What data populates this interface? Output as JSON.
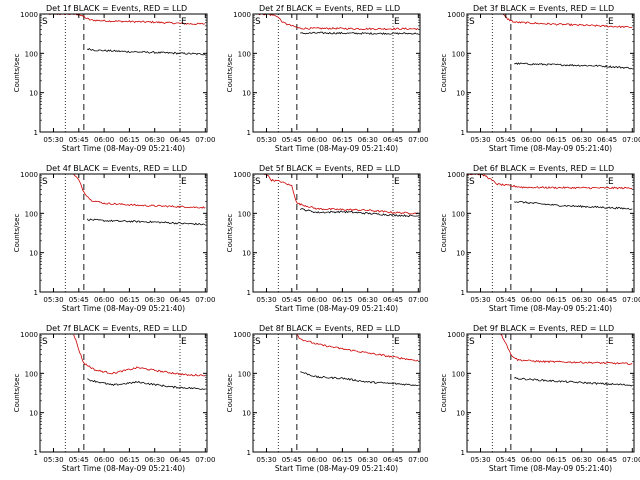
{
  "chart_data": [
    {
      "type": "line",
      "title": "Det 1f BLACK = Events, RED = LLD",
      "xlabel": "Start Time (08-May-09 05:21:40)",
      "ylabel": "Counts/sec",
      "x_ticks": [
        "05:30",
        "05:45",
        "06:00",
        "06:15",
        "06:30",
        "06:45",
        "07:00"
      ],
      "y_ticks": [
        "1",
        "10",
        "100",
        "1000"
      ],
      "y_scale": "log",
      "ylim": [
        1,
        1000
      ],
      "markers": [
        "S",
        "E"
      ],
      "series": [
        {
          "color": "#cc0000",
          "x": [
            "05:24",
            "05:38",
            "05:45",
            "05:49",
            "05:52",
            "06:05",
            "06:30",
            "06:52",
            "07:00"
          ],
          "values": [
            1000,
            1000,
            980,
            800,
            700,
            660,
            620,
            560,
            560
          ]
        },
        {
          "color": "#000000",
          "x": [
            "05:49",
            "05:50",
            "05:55",
            "06:15",
            "06:45",
            "07:00"
          ],
          "values": [
            null,
            130,
            120,
            110,
            100,
            95
          ]
        }
      ]
    },
    {
      "type": "line",
      "title": "Det 2f BLACK = Events, RED = LLD",
      "xlabel": "Start Time (08-May-09 05:21:40)",
      "ylabel": "Counts/sec",
      "x_ticks": [
        "05:30",
        "05:45",
        "06:00",
        "06:15",
        "06:30",
        "06:45",
        "07:00"
      ],
      "y_ticks": [
        "1",
        "10",
        "100",
        "1000"
      ],
      "y_scale": "log",
      "ylim": [
        1,
        1000
      ],
      "markers": [
        "S",
        "E"
      ],
      "series": [
        {
          "color": "#cc0000",
          "x": [
            "05:24",
            "05:30",
            "05:36",
            "05:40",
            "05:45",
            "05:50",
            "06:10",
            "06:30",
            "07:00"
          ],
          "values": [
            1000,
            1000,
            900,
            600,
            500,
            430,
            430,
            420,
            420
          ]
        },
        {
          "color": "#000000",
          "x": [
            "05:49",
            "05:50",
            "06:00",
            "06:30",
            "07:00"
          ],
          "values": [
            null,
            320,
            330,
            320,
            320
          ]
        }
      ]
    },
    {
      "type": "line",
      "title": "Det 3f BLACK = Events, RED = LLD",
      "xlabel": "Start Time (08-May-09 05:21:40)",
      "ylabel": "Counts/sec",
      "x_ticks": [
        "05:30",
        "05:45",
        "06:00",
        "06:15",
        "06:30",
        "06:45",
        "07:00"
      ],
      "y_ticks": [
        "1",
        "10",
        "100",
        "1000"
      ],
      "y_scale": "log",
      "ylim": [
        1,
        1000
      ],
      "markers": [
        "S",
        "E"
      ],
      "series": [
        {
          "color": "#cc0000",
          "x": [
            "05:43",
            "05:46",
            "05:50",
            "06:10",
            "06:40",
            "07:00"
          ],
          "values": [
            1000,
            750,
            620,
            560,
            500,
            460
          ]
        },
        {
          "color": "#000000",
          "x": [
            "05:49",
            "05:50",
            "06:10",
            "06:40",
            "07:00"
          ],
          "values": [
            null,
            55,
            52,
            48,
            42
          ]
        }
      ]
    },
    {
      "type": "line",
      "title": "Det 4f BLACK = Events, RED = LLD",
      "xlabel": "Start Time (08-May-09 05:21:40)",
      "ylabel": "Counts/sec",
      "x_ticks": [
        "05:30",
        "05:45",
        "06:00",
        "06:15",
        "06:30",
        "06:45",
        "07:00"
      ],
      "y_ticks": [
        "1",
        "10",
        "100",
        "1000"
      ],
      "y_scale": "log",
      "ylim": [
        1,
        1000
      ],
      "markers": [
        "S",
        "E"
      ],
      "series": [
        {
          "color": "#cc0000",
          "x": [
            "05:42",
            "05:45",
            "05:48",
            "05:52",
            "06:00",
            "06:20",
            "06:40",
            "07:00"
          ],
          "values": [
            1000,
            700,
            350,
            220,
            180,
            160,
            150,
            140
          ]
        },
        {
          "color": "#000000",
          "x": [
            "05:49",
            "05:50",
            "06:00",
            "06:30",
            "07:00"
          ],
          "values": [
            null,
            70,
            65,
            60,
            52
          ]
        }
      ]
    },
    {
      "type": "line",
      "title": "Det 5f BLACK = Events, RED = LLD",
      "xlabel": "Start Time (08-May-09 05:21:40)",
      "ylabel": "Counts/sec",
      "x_ticks": [
        "05:30",
        "05:45",
        "06:00",
        "06:15",
        "06:30",
        "06:45",
        "07:00"
      ],
      "y_ticks": [
        "1",
        "10",
        "100",
        "1000"
      ],
      "y_scale": "log",
      "ylim": [
        1,
        1000
      ],
      "markers": [
        "S",
        "E"
      ],
      "series": [
        {
          "color": "#cc0000",
          "x": [
            "05:23",
            "05:30",
            "05:33",
            "05:38",
            "05:45",
            "05:48",
            "06:00",
            "06:15",
            "06:30",
            "06:45",
            "07:00"
          ],
          "values": [
            1000,
            1000,
            700,
            650,
            500,
            180,
            130,
            125,
            120,
            105,
            100
          ]
        },
        {
          "color": "#000000",
          "x": [
            "05:49",
            "05:50",
            "06:00",
            "06:15",
            "06:30",
            "06:45",
            "07:00"
          ],
          "values": [
            null,
            130,
            105,
            110,
            100,
            90,
            85
          ]
        }
      ]
    },
    {
      "type": "line",
      "title": "Det 6f BLACK = Events, RED = LLD",
      "xlabel": "Start Time (08-May-09 05:21:40)",
      "ylabel": "Counts/sec",
      "x_ticks": [
        "05:30",
        "05:45",
        "06:00",
        "06:15",
        "06:30",
        "06:45",
        "07:00"
      ],
      "y_ticks": [
        "1",
        "10",
        "100",
        "1000"
      ],
      "y_scale": "log",
      "ylim": [
        1,
        1000
      ],
      "markers": [
        "S",
        "E"
      ],
      "series": [
        {
          "color": "#cc0000",
          "x": [
            "05:22",
            "05:28",
            "05:33",
            "05:40",
            "05:48",
            "05:55",
            "06:15",
            "06:45",
            "07:00"
          ],
          "values": [
            1000,
            1000,
            900,
            550,
            500,
            460,
            450,
            440,
            440
          ]
        },
        {
          "color": "#000000",
          "x": [
            "05:49",
            "05:50",
            "06:15",
            "06:45",
            "07:00"
          ],
          "values": [
            null,
            200,
            160,
            140,
            130
          ]
        }
      ]
    },
    {
      "type": "line",
      "title": "Det 7f BLACK = Events, RED = LLD",
      "xlabel": "Start Time (08-May-09 05:21:40)",
      "ylabel": "Counts/sec",
      "x_ticks": [
        "05:30",
        "05:45",
        "06:00",
        "06:15",
        "06:30",
        "06:45",
        "07:00"
      ],
      "y_ticks": [
        "1",
        "10",
        "100",
        "1000"
      ],
      "y_scale": "log",
      "ylim": [
        1,
        1000
      ],
      "markers": [
        "S",
        "E"
      ],
      "series": [
        {
          "color": "#cc0000",
          "x": [
            "05:42",
            "05:45",
            "05:48",
            "05:55",
            "06:05",
            "06:20",
            "06:35",
            "06:50",
            "07:00"
          ],
          "values": [
            1000,
            400,
            180,
            120,
            100,
            140,
            110,
            90,
            90
          ]
        },
        {
          "color": "#000000",
          "x": [
            "05:49",
            "05:50",
            "06:05",
            "06:20",
            "06:40",
            "07:00"
          ],
          "values": [
            null,
            70,
            50,
            60,
            45,
            40
          ]
        }
      ]
    },
    {
      "type": "line",
      "title": "Det 8f BLACK = Events, RED = LLD",
      "xlabel": "Start Time (08-May-09 05:21:40)",
      "ylabel": "Counts/sec",
      "x_ticks": [
        "05:30",
        "05:45",
        "06:00",
        "06:15",
        "06:30",
        "06:45",
        "07:00"
      ],
      "y_ticks": [
        "1",
        "10",
        "100",
        "1000"
      ],
      "y_scale": "log",
      "ylim": [
        1,
        1000
      ],
      "markers": [
        "S",
        "E"
      ],
      "series": [
        {
          "color": "#cc0000",
          "x": [
            "05:48",
            "05:50",
            "06:00",
            "06:15",
            "06:30",
            "06:45",
            "07:00"
          ],
          "values": [
            1000,
            750,
            550,
            420,
            330,
            260,
            210
          ]
        },
        {
          "color": "#000000",
          "x": [
            "05:49",
            "05:50",
            "06:00",
            "06:15",
            "06:30",
            "06:45",
            "07:00"
          ],
          "values": [
            null,
            110,
            80,
            75,
            60,
            55,
            50
          ]
        }
      ]
    },
    {
      "type": "line",
      "title": "Det 9f BLACK = Events, RED = LLD",
      "xlabel": "Start Time (08-May-09 05:21:40)",
      "ylabel": "Counts/sec",
      "x_ticks": [
        "05:30",
        "05:45",
        "06:00",
        "06:15",
        "06:30",
        "06:45",
        "07:00"
      ],
      "y_ticks": [
        "1",
        "10",
        "100",
        "1000"
      ],
      "y_scale": "log",
      "ylim": [
        1,
        1000
      ],
      "markers": [
        "S",
        "E"
      ],
      "series": [
        {
          "color": "#cc0000",
          "x": [
            "05:42",
            "05:45",
            "05:48",
            "05:52",
            "06:05",
            "06:30",
            "07:00"
          ],
          "values": [
            1000,
            600,
            300,
            220,
            200,
            190,
            175
          ]
        },
        {
          "color": "#000000",
          "x": [
            "05:49",
            "05:50",
            "06:10",
            "06:40",
            "07:00"
          ],
          "values": [
            null,
            75,
            65,
            55,
            50
          ]
        }
      ]
    }
  ]
}
